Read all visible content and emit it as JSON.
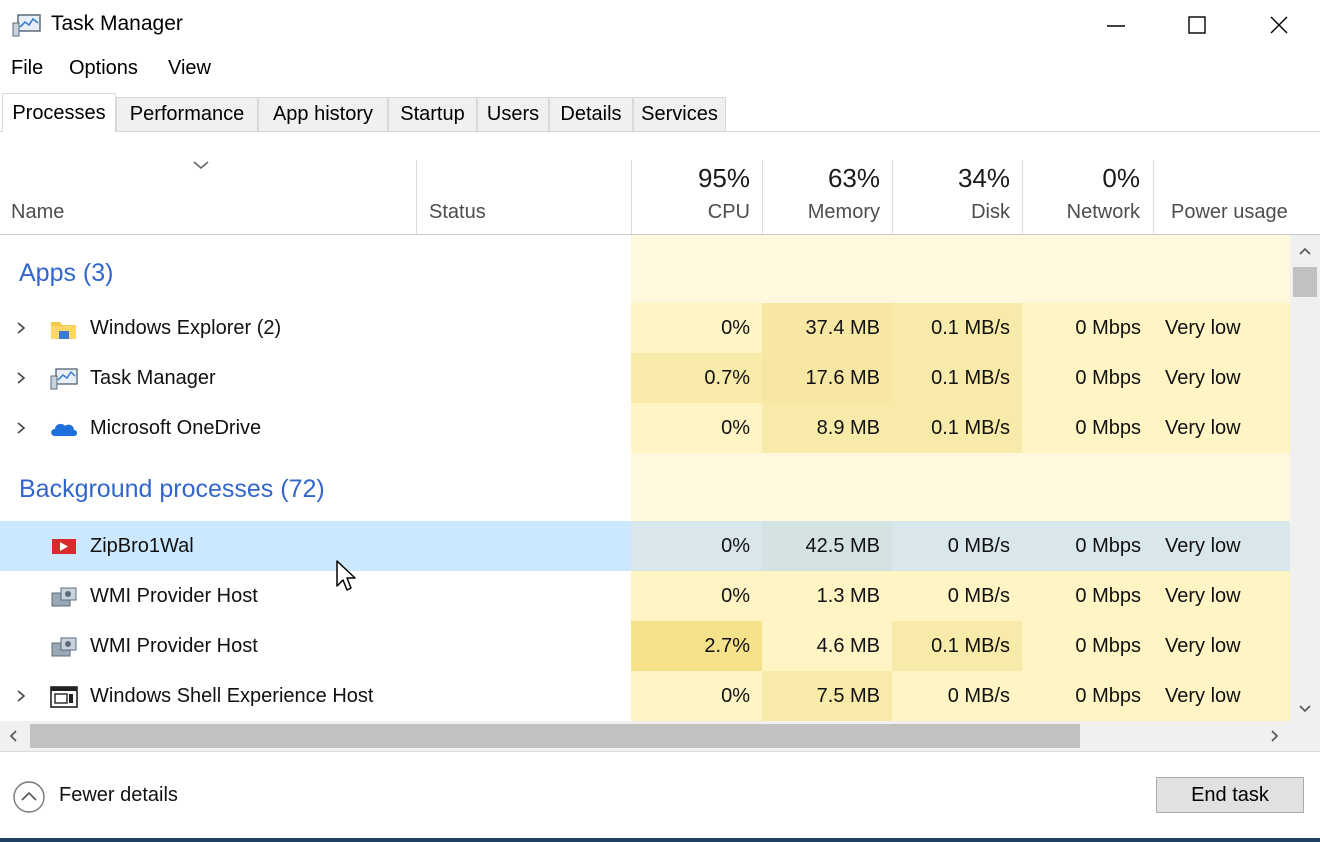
{
  "window": {
    "title": "Task Manager",
    "controls": [
      "minimize",
      "maximize",
      "close"
    ]
  },
  "menu": [
    "File",
    "Options",
    "View"
  ],
  "tabs": [
    {
      "label": "Processes",
      "active": true
    },
    {
      "label": "Performance"
    },
    {
      "label": "App history"
    },
    {
      "label": "Startup"
    },
    {
      "label": "Users"
    },
    {
      "label": "Details"
    },
    {
      "label": "Services"
    }
  ],
  "columns": {
    "name": "Name",
    "status": "Status",
    "cpu": {
      "pct": "95%",
      "label": "CPU"
    },
    "memory": {
      "pct": "63%",
      "label": "Memory"
    },
    "disk": {
      "pct": "34%",
      "label": "Disk"
    },
    "network": {
      "pct": "0%",
      "label": "Network"
    },
    "power": {
      "label": "Power usage"
    }
  },
  "groups": {
    "apps": "Apps (3)",
    "background": "Background processes (72)"
  },
  "processes": [
    {
      "name": "Windows Explorer (2)",
      "icon": "folder-icon",
      "cpu": "0%",
      "memory": "37.4 MB",
      "disk": "0.1 MB/s",
      "network": "0 Mbps",
      "power": "Very low",
      "expandable": true
    },
    {
      "name": "Task Manager",
      "icon": "task-manager-icon",
      "cpu": "0.7%",
      "memory": "17.6 MB",
      "disk": "0.1 MB/s",
      "network": "0 Mbps",
      "power": "Very low",
      "expandable": true
    },
    {
      "name": "Microsoft OneDrive",
      "icon": "cloud-icon",
      "cpu": "0%",
      "memory": "8.9 MB",
      "disk": "0.1 MB/s",
      "network": "0 Mbps",
      "power": "Very low",
      "expandable": true
    },
    {
      "name": "ZipBro1Wal",
      "icon": "red-app-icon",
      "cpu": "0%",
      "memory": "42.5 MB",
      "disk": "0 MB/s",
      "network": "0 Mbps",
      "power": "Very low",
      "expandable": false,
      "selected": true
    },
    {
      "name": "WMI Provider Host",
      "icon": "service-host-icon",
      "cpu": "0%",
      "memory": "1.3 MB",
      "disk": "0 MB/s",
      "network": "0 Mbps",
      "power": "Very low",
      "expandable": false
    },
    {
      "name": "WMI Provider Host",
      "icon": "service-host-icon",
      "cpu": "2.7%",
      "memory": "4.6 MB",
      "disk": "0.1 MB/s",
      "network": "0 Mbps",
      "power": "Very low",
      "expandable": false
    },
    {
      "name": "Windows Shell Experience Host",
      "icon": "window-icon",
      "cpu": "0%",
      "memory": "7.5 MB",
      "disk": "0 MB/s",
      "network": "0 Mbps",
      "power": "Very low",
      "expandable": true
    }
  ],
  "footer": {
    "fewer_details": "Fewer details",
    "end_task": "End task"
  },
  "colors": {
    "heat_light": "#fff4c4",
    "heat_mid": "#f9eca8",
    "heat_dark": "#f5e28a",
    "selected_row": "#cce8ff",
    "group_title": "#3366cc"
  }
}
